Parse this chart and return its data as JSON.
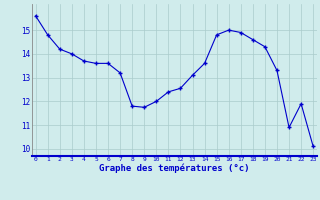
{
  "x": [
    0,
    1,
    2,
    3,
    4,
    5,
    6,
    7,
    8,
    9,
    10,
    11,
    12,
    13,
    14,
    15,
    16,
    17,
    18,
    19,
    20,
    21,
    22,
    23
  ],
  "y": [
    15.6,
    14.8,
    14.2,
    14.0,
    13.7,
    13.6,
    13.6,
    13.2,
    11.8,
    11.75,
    12.0,
    12.4,
    12.55,
    13.1,
    13.6,
    14.8,
    15.0,
    14.9,
    14.6,
    14.3,
    13.3,
    10.9,
    11.9,
    10.1
  ],
  "line_color": "#0000cc",
  "marker": "+",
  "marker_size": 3.5,
  "marker_lw": 1.0,
  "bg_color": "#d0ecec",
  "grid_color": "#aacccc",
  "xlabel": "Graphe des températures (°c)",
  "tick_color": "#0000cc",
  "ylim": [
    9.7,
    16.1
  ],
  "yticks": [
    10,
    11,
    12,
    13,
    14,
    15
  ],
  "xticks": [
    0,
    1,
    2,
    3,
    4,
    5,
    6,
    7,
    8,
    9,
    10,
    11,
    12,
    13,
    14,
    15,
    16,
    17,
    18,
    19,
    20,
    21,
    22,
    23
  ],
  "xlim": [
    -0.3,
    23.3
  ]
}
